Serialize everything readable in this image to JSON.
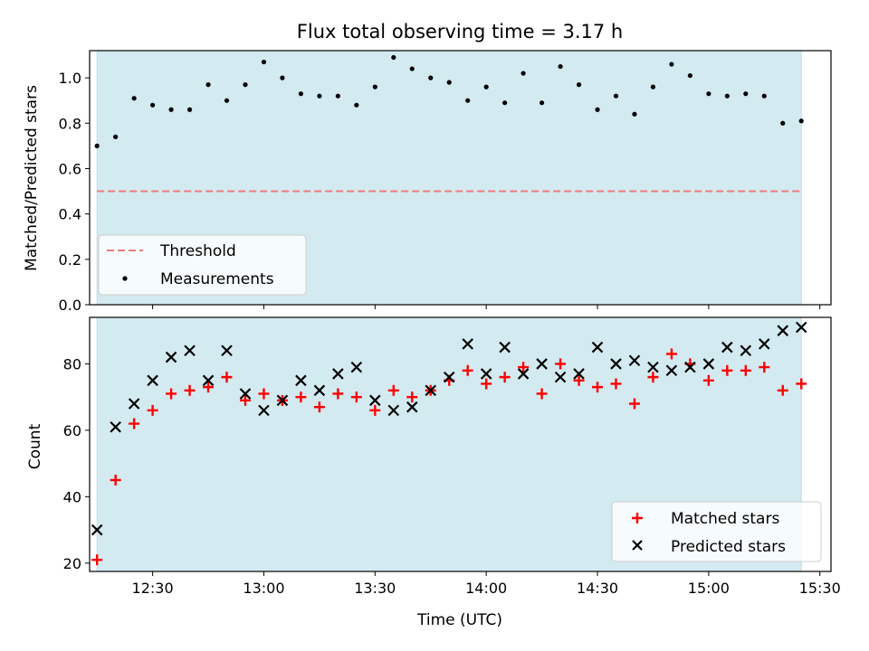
{
  "chart_data": [
    {
      "type": "scatter",
      "title": "Flux total observing time = 3.17 h",
      "xlabel": "",
      "ylabel": "Matched/Predicted stars",
      "ylim": [
        0.0,
        1.12
      ],
      "yticks": [
        0.0,
        0.2,
        0.4,
        0.6,
        0.8,
        1.0
      ],
      "ytick_labels": [
        "0.0",
        "0.2",
        "0.4",
        "0.6",
        "0.8",
        "1.0"
      ],
      "xlim": [
        "12:13",
        "15:33"
      ],
      "x_ticks": [
        "12:30",
        "13:00",
        "13:30",
        "14:00",
        "14:30",
        "15:00",
        "15:30"
      ],
      "x_tick_labels_shown": false,
      "shaded_region": {
        "start": "12:15",
        "end": "15:25",
        "color": "#d3eaf0"
      },
      "threshold": {
        "name": "Threshold",
        "value": 0.5,
        "color": "#f07a7a",
        "style": "dashed"
      },
      "series": [
        {
          "name": "Measurements",
          "color": "#000000",
          "marker": "dot",
          "x": [
            "12:15",
            "12:20",
            "12:25",
            "12:30",
            "12:35",
            "12:40",
            "12:45",
            "12:50",
            "12:55",
            "13:00",
            "13:05",
            "13:10",
            "13:15",
            "13:20",
            "13:25",
            "13:30",
            "13:35",
            "13:40",
            "13:45",
            "13:50",
            "13:55",
            "14:00",
            "14:05",
            "14:10",
            "14:15",
            "14:20",
            "14:25",
            "14:30",
            "14:35",
            "14:40",
            "14:45",
            "14:50",
            "14:55",
            "15:00",
            "15:05",
            "15:10",
            "15:15",
            "15:20",
            "15:25"
          ],
          "values": [
            0.7,
            0.74,
            0.91,
            0.88,
            0.86,
            0.86,
            0.97,
            0.9,
            0.97,
            1.07,
            1.0,
            0.93,
            0.92,
            0.92,
            0.88,
            0.96,
            1.09,
            1.04,
            1.0,
            0.98,
            0.9,
            0.96,
            0.89,
            1.02,
            0.89,
            1.05,
            0.97,
            0.86,
            0.92,
            0.84,
            0.96,
            1.06,
            1.01,
            0.93,
            0.92,
            0.93,
            0.92,
            0.8,
            0.81
          ]
        }
      ],
      "legend": {
        "position": "lower-left",
        "entries": [
          "Threshold",
          "Measurements"
        ]
      }
    },
    {
      "type": "scatter",
      "title": "",
      "xlabel": "Time (UTC)",
      "ylabel": "Count",
      "ylim": [
        17.5,
        94
      ],
      "yticks": [
        20,
        40,
        60,
        80
      ],
      "ytick_labels": [
        "20",
        "40",
        "60",
        "80"
      ],
      "xlim": [
        "12:13",
        "15:33"
      ],
      "x_ticks": [
        "12:30",
        "13:00",
        "13:30",
        "14:00",
        "14:30",
        "15:00",
        "15:30"
      ],
      "x_tick_labels_shown": true,
      "shaded_region": {
        "start": "12:15",
        "end": "15:25",
        "color": "#d3eaf0"
      },
      "series": [
        {
          "name": "Matched stars",
          "color": "#ff0000",
          "marker": "plus",
          "x": [
            "12:15",
            "12:20",
            "12:25",
            "12:30",
            "12:35",
            "12:40",
            "12:45",
            "12:50",
            "12:55",
            "13:00",
            "13:05",
            "13:10",
            "13:15",
            "13:20",
            "13:25",
            "13:30",
            "13:35",
            "13:40",
            "13:45",
            "13:50",
            "13:55",
            "14:00",
            "14:05",
            "14:10",
            "14:15",
            "14:20",
            "14:25",
            "14:30",
            "14:35",
            "14:40",
            "14:45",
            "14:50",
            "14:55",
            "15:00",
            "15:05",
            "15:10",
            "15:15",
            "15:20",
            "15:25"
          ],
          "values": [
            21,
            45,
            62,
            66,
            71,
            72,
            73,
            76,
            69,
            71,
            69,
            70,
            67,
            71,
            70,
            66,
            72,
            70,
            72,
            75,
            78,
            74,
            76,
            79,
            71,
            80,
            75,
            73,
            74,
            68,
            76,
            83,
            80,
            75,
            78,
            78,
            79,
            72,
            74
          ]
        },
        {
          "name": "Predicted stars",
          "color": "#000000",
          "marker": "x",
          "x": [
            "12:15",
            "12:20",
            "12:25",
            "12:30",
            "12:35",
            "12:40",
            "12:45",
            "12:50",
            "12:55",
            "13:00",
            "13:05",
            "13:10",
            "13:15",
            "13:20",
            "13:25",
            "13:30",
            "13:35",
            "13:40",
            "13:45",
            "13:50",
            "13:55",
            "14:00",
            "14:05",
            "14:10",
            "14:15",
            "14:20",
            "14:25",
            "14:30",
            "14:35",
            "14:40",
            "14:45",
            "14:50",
            "14:55",
            "15:00",
            "15:05",
            "15:10",
            "15:15",
            "15:20",
            "15:25"
          ],
          "values": [
            30,
            61,
            68,
            75,
            82,
            84,
            75,
            84,
            71,
            66,
            69,
            75,
            72,
            77,
            79,
            69,
            66,
            67,
            72,
            76,
            86,
            77,
            85,
            77,
            80,
            76,
            77,
            85,
            80,
            81,
            79,
            78,
            79,
            80,
            85,
            84,
            86,
            90,
            91
          ]
        }
      ],
      "legend": {
        "position": "lower-right",
        "entries": [
          "Matched stars",
          "Predicted stars"
        ]
      }
    }
  ]
}
